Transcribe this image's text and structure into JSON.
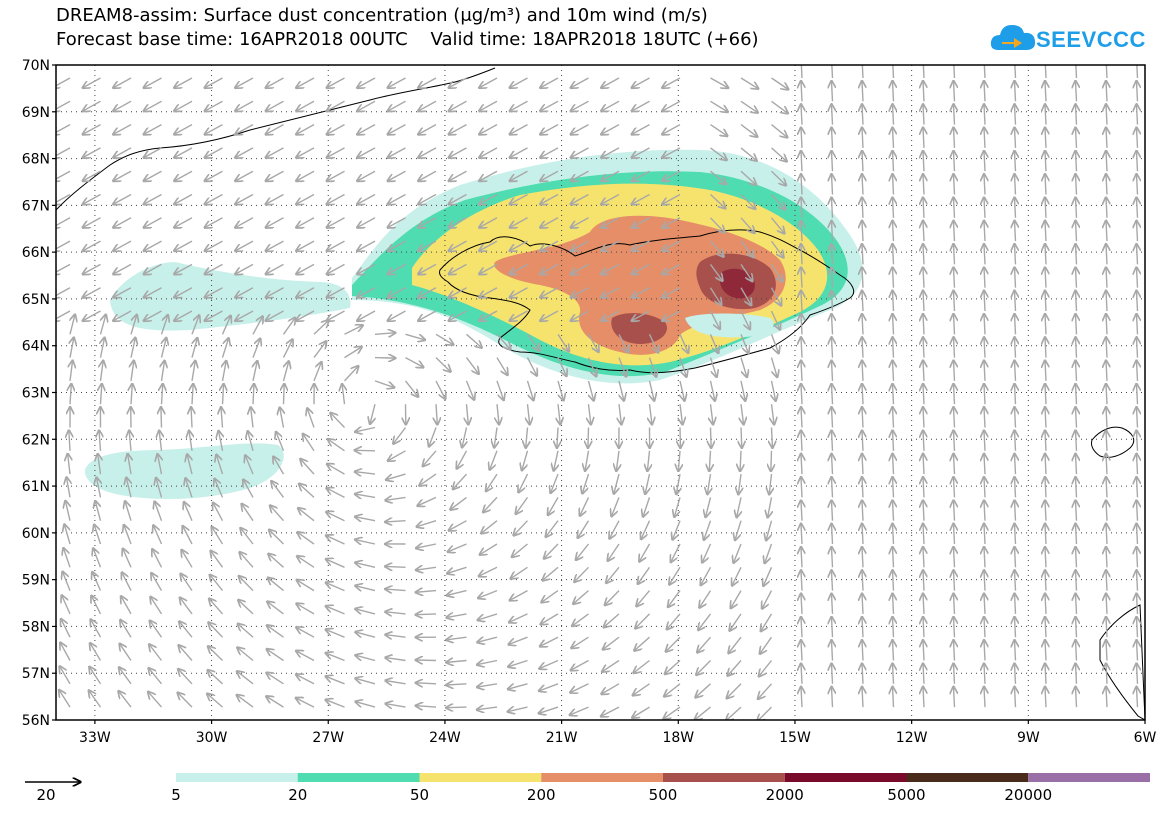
{
  "title": {
    "line1": "DREAM8-assim: Surface dust concentration (μg/m³) and 10m wind (m/s)",
    "line2": "Forecast base time: 16APR2018 00UTC    Valid time: 18APR2018 18UTC (+66)"
  },
  "logo": {
    "text": "SEEVCCC",
    "icon": "cloud-arrow-icon",
    "color": "#1e9ee8"
  },
  "axes": {
    "lat_labels": [
      "70N",
      "69N",
      "68N",
      "67N",
      "66N",
      "65N",
      "64N",
      "63N",
      "62N",
      "61N",
      "60N",
      "59N",
      "58N",
      "57N",
      "56N"
    ],
    "lon_labels": [
      "33W",
      "30W",
      "27W",
      "24W",
      "21W",
      "18W",
      "15W",
      "12W",
      "9W",
      "6W"
    ],
    "lat_range": [
      56,
      70
    ],
    "lon_range": [
      -34,
      -6
    ],
    "grid": "dotted"
  },
  "legend": {
    "wind_reference": "20",
    "bounds": [
      "5",
      "20",
      "50",
      "200",
      "500",
      "2000",
      "5000",
      "20000"
    ],
    "colors": [
      "#c8f0ea",
      "#4fdcb0",
      "#f6e36e",
      "#e58e68",
      "#a8504c",
      "#7a0a2a",
      "#4a2a1a",
      "#9a6fa8"
    ]
  }
}
